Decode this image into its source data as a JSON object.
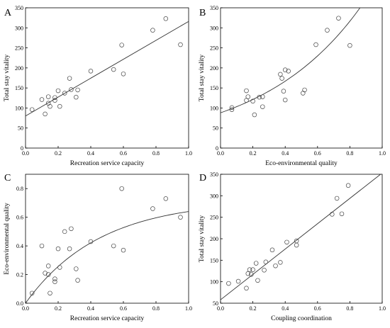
{
  "chart_data": [
    {
      "panel": "A",
      "type": "scatter",
      "xlabel": "Recreation service capacity",
      "ylabel": "Total stay vitality",
      "xlim": [
        0,
        1.0
      ],
      "ylim": [
        0,
        350
      ],
      "xticks": [
        "0.0",
        "0.2",
        "0.4",
        "0.6",
        "0.8",
        "1.0"
      ],
      "yticks": [
        "0",
        "50",
        "100",
        "150",
        "200",
        "250",
        "300",
        "350"
      ],
      "grid": false,
      "legend": "none",
      "fit": {
        "kind": "linear",
        "points": [
          [
            0,
            80
          ],
          [
            1.0,
            316
          ]
        ]
      },
      "points": [
        {
          "x": 0.04,
          "y": 96
        },
        {
          "x": 0.1,
          "y": 121
        },
        {
          "x": 0.12,
          "y": 85
        },
        {
          "x": 0.14,
          "y": 128
        },
        {
          "x": 0.14,
          "y": 112
        },
        {
          "x": 0.15,
          "y": 104
        },
        {
          "x": 0.18,
          "y": 126
        },
        {
          "x": 0.18,
          "y": 119
        },
        {
          "x": 0.2,
          "y": 143
        },
        {
          "x": 0.21,
          "y": 104
        },
        {
          "x": 0.24,
          "y": 137
        },
        {
          "x": 0.27,
          "y": 174
        },
        {
          "x": 0.28,
          "y": 146
        },
        {
          "x": 0.31,
          "y": 127
        },
        {
          "x": 0.32,
          "y": 145
        },
        {
          "x": 0.4,
          "y": 192
        },
        {
          "x": 0.54,
          "y": 196
        },
        {
          "x": 0.59,
          "y": 257
        },
        {
          "x": 0.6,
          "y": 185
        },
        {
          "x": 0.78,
          "y": 294
        },
        {
          "x": 0.86,
          "y": 323
        },
        {
          "x": 0.95,
          "y": 258
        }
      ]
    },
    {
      "panel": "B",
      "type": "scatter",
      "xlabel": "Eco-environmental quality",
      "ylabel": "Total stay vitality",
      "xlim": [
        0,
        1.0
      ],
      "ylim": [
        0,
        350
      ],
      "xticks": [
        "0.0",
        "0.2",
        "0.4",
        "0.6",
        "0.8",
        "1.0"
      ],
      "yticks": [
        "0",
        "50",
        "100",
        "150",
        "200",
        "250",
        "300",
        "350"
      ],
      "grid": false,
      "legend": "none",
      "fit": {
        "kind": "exponential",
        "a": 88,
        "b": 1.6
      },
      "points": [
        {
          "x": 0.07,
          "y": 96
        },
        {
          "x": 0.07,
          "y": 101
        },
        {
          "x": 0.16,
          "y": 143
        },
        {
          "x": 0.16,
          "y": 119
        },
        {
          "x": 0.17,
          "y": 128
        },
        {
          "x": 0.2,
          "y": 117
        },
        {
          "x": 0.21,
          "y": 83
        },
        {
          "x": 0.24,
          "y": 127
        },
        {
          "x": 0.26,
          "y": 103
        },
        {
          "x": 0.26,
          "y": 128
        },
        {
          "x": 0.37,
          "y": 184
        },
        {
          "x": 0.38,
          "y": 174
        },
        {
          "x": 0.39,
          "y": 142
        },
        {
          "x": 0.4,
          "y": 195
        },
        {
          "x": 0.4,
          "y": 120
        },
        {
          "x": 0.42,
          "y": 192
        },
        {
          "x": 0.51,
          "y": 137
        },
        {
          "x": 0.52,
          "y": 145
        },
        {
          "x": 0.59,
          "y": 258
        },
        {
          "x": 0.66,
          "y": 294
        },
        {
          "x": 0.73,
          "y": 324
        },
        {
          "x": 0.8,
          "y": 256
        }
      ]
    },
    {
      "panel": "C",
      "type": "scatter",
      "xlabel": "Recreation service capacity",
      "ylabel": "Eco-environmental quality",
      "xlim": [
        0,
        1.0
      ],
      "ylim": [
        0,
        0.9
      ],
      "xticks": [
        "0.0",
        "0.2",
        "0.4",
        "0.6",
        "0.8",
        "1.0"
      ],
      "yticks": [
        "0.0",
        "0.2",
        "0.4",
        "0.6",
        "0.8"
      ],
      "grid": false,
      "legend": "none",
      "fit": {
        "kind": "saturating",
        "a": 0.72,
        "b": 2.2
      },
      "points": [
        {
          "x": 0.04,
          "y": 0.07
        },
        {
          "x": 0.1,
          "y": 0.4
        },
        {
          "x": 0.12,
          "y": 0.21
        },
        {
          "x": 0.14,
          "y": 0.26
        },
        {
          "x": 0.14,
          "y": 0.2
        },
        {
          "x": 0.15,
          "y": 0.07
        },
        {
          "x": 0.18,
          "y": 0.17
        },
        {
          "x": 0.18,
          "y": 0.15
        },
        {
          "x": 0.2,
          "y": 0.38
        },
        {
          "x": 0.21,
          "y": 0.25
        },
        {
          "x": 0.24,
          "y": 0.5
        },
        {
          "x": 0.27,
          "y": 0.38
        },
        {
          "x": 0.28,
          "y": 0.52
        },
        {
          "x": 0.31,
          "y": 0.24
        },
        {
          "x": 0.32,
          "y": 0.16
        },
        {
          "x": 0.4,
          "y": 0.43
        },
        {
          "x": 0.54,
          "y": 0.4
        },
        {
          "x": 0.59,
          "y": 0.8
        },
        {
          "x": 0.6,
          "y": 0.37
        },
        {
          "x": 0.78,
          "y": 0.66
        },
        {
          "x": 0.86,
          "y": 0.73
        },
        {
          "x": 0.95,
          "y": 0.6
        }
      ]
    },
    {
      "panel": "D",
      "type": "scatter",
      "xlabel": "Coupling coordination",
      "ylabel": "Total stay vitality",
      "xlim": [
        0,
        1.0
      ],
      "ylim": [
        50,
        350
      ],
      "xticks": [
        "0.0",
        "0.2",
        "0.4",
        "0.6",
        "0.8",
        "1.0"
      ],
      "yticks": [
        "50",
        "100",
        "150",
        "200",
        "250",
        "300",
        "350"
      ],
      "grid": false,
      "legend": "none",
      "fit": {
        "kind": "linear",
        "points": [
          [
            0,
            58
          ],
          [
            0.99,
            350
          ]
        ]
      },
      "points": [
        {
          "x": 0.05,
          "y": 96
        },
        {
          "x": 0.11,
          "y": 101
        },
        {
          "x": 0.16,
          "y": 85
        },
        {
          "x": 0.17,
          "y": 119
        },
        {
          "x": 0.18,
          "y": 128
        },
        {
          "x": 0.19,
          "y": 117
        },
        {
          "x": 0.2,
          "y": 128
        },
        {
          "x": 0.22,
          "y": 143
        },
        {
          "x": 0.23,
          "y": 103
        },
        {
          "x": 0.27,
          "y": 127
        },
        {
          "x": 0.28,
          "y": 146
        },
        {
          "x": 0.32,
          "y": 174
        },
        {
          "x": 0.34,
          "y": 137
        },
        {
          "x": 0.37,
          "y": 145
        },
        {
          "x": 0.41,
          "y": 192
        },
        {
          "x": 0.47,
          "y": 195
        },
        {
          "x": 0.47,
          "y": 185
        },
        {
          "x": 0.69,
          "y": 257
        },
        {
          "x": 0.72,
          "y": 294
        },
        {
          "x": 0.75,
          "y": 258
        },
        {
          "x": 0.79,
          "y": 324
        }
      ]
    }
  ]
}
